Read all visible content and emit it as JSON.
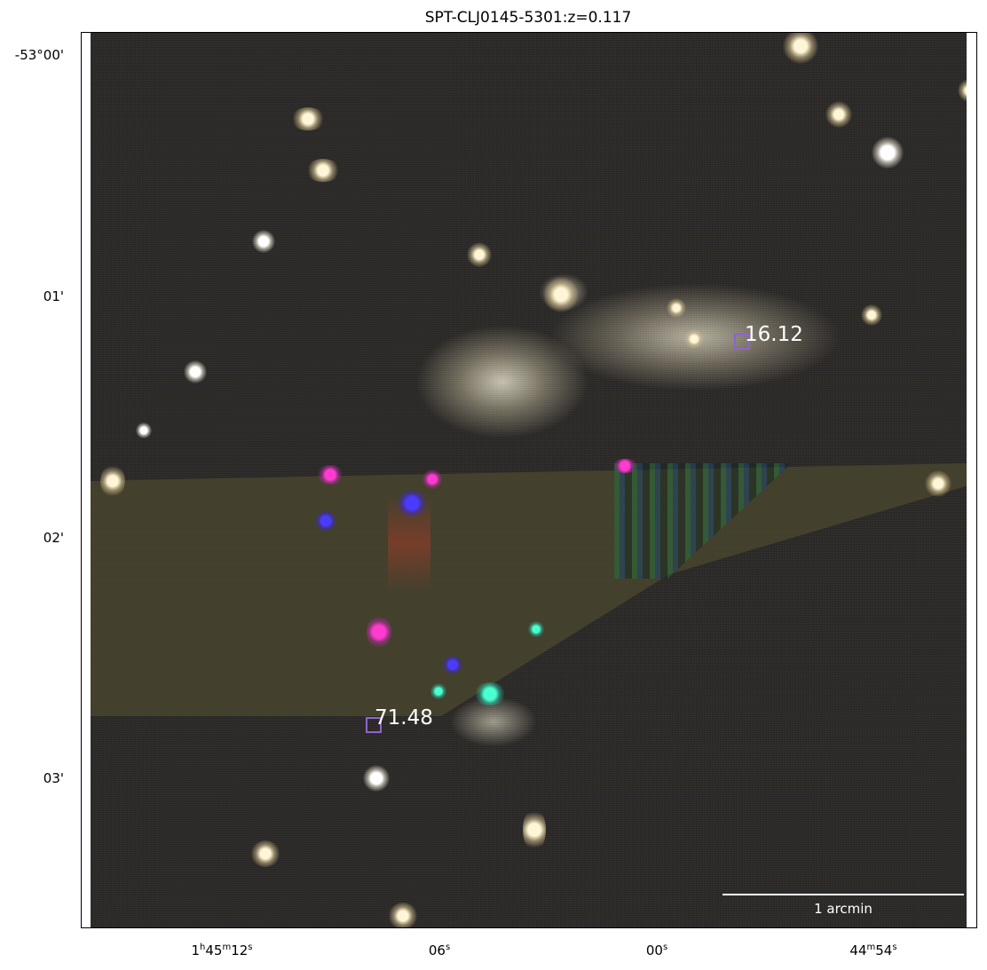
{
  "title": "SPT-CLJ0145-5301:z=0.117",
  "dec_ticks": [
    "-53°00'",
    "01'",
    "02'",
    "03'"
  ],
  "ra_ticks": [
    {
      "h": "1",
      "h_unit": "h",
      "m": "45",
      "m_unit": "m",
      "s": "12",
      "s_unit": "s"
    },
    {
      "s": "06",
      "s_unit": "s"
    },
    {
      "s": "00",
      "s_unit": "s"
    },
    {
      "m": "44",
      "m_unit": "m",
      "s": "54",
      "s_unit": "s"
    }
  ],
  "markers": [
    {
      "label": "16.12"
    },
    {
      "label": "71.48"
    }
  ],
  "scale_bar_label": "1 arcmin",
  "colors": {
    "marker": "#8e66c8",
    "label": "#ffffff"
  }
}
